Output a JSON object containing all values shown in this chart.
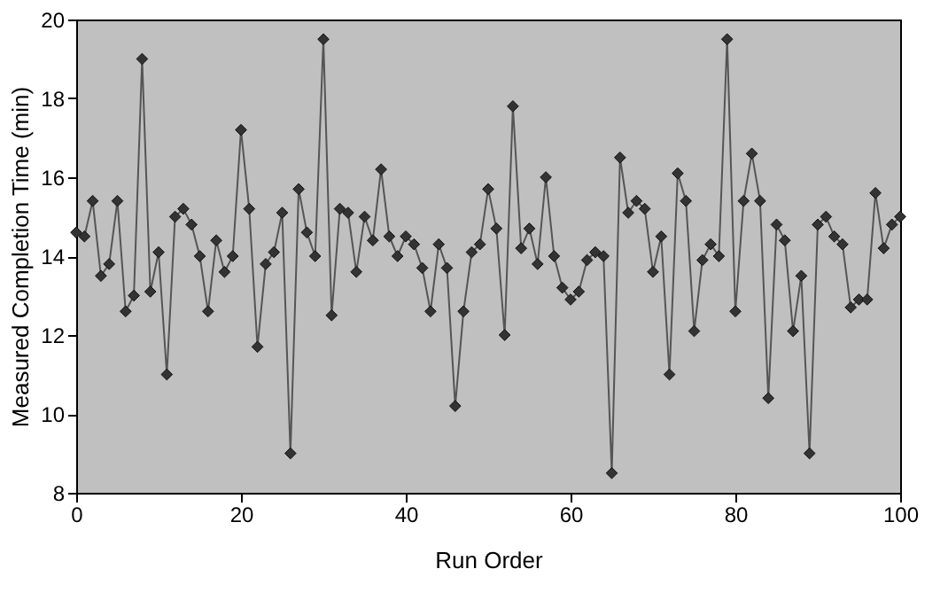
{
  "chart_data": {
    "type": "line",
    "xlabel": "Run Order",
    "ylabel": "Measured Completion Time (min)",
    "x": [
      0,
      1,
      2,
      3,
      4,
      5,
      6,
      7,
      8,
      9,
      10,
      11,
      12,
      13,
      14,
      15,
      16,
      17,
      18,
      19,
      20,
      21,
      22,
      23,
      24,
      25,
      26,
      27,
      28,
      29,
      30,
      31,
      32,
      33,
      34,
      35,
      36,
      37,
      38,
      39,
      40,
      41,
      42,
      43,
      44,
      45,
      46,
      47,
      48,
      49,
      50,
      51,
      52,
      53,
      54,
      55,
      56,
      57,
      58,
      59,
      60,
      61,
      62,
      63,
      64,
      65,
      66,
      67,
      68,
      69,
      70,
      71,
      72,
      73,
      74,
      75,
      76,
      77,
      78,
      79,
      80,
      81,
      82,
      83,
      84,
      85,
      86,
      87,
      88,
      89,
      90,
      91,
      92,
      93,
      94,
      95,
      96,
      97,
      98,
      99,
      100
    ],
    "series": [
      {
        "color": "#333333",
        "values": [
          14.6,
          14.5,
          15.4,
          13.5,
          13.8,
          15.4,
          12.6,
          13.0,
          19.0,
          13.1,
          14.1,
          11.0,
          15.0,
          15.2,
          14.8,
          14.0,
          12.6,
          14.4,
          13.6,
          14.0,
          17.2,
          15.2,
          11.7,
          13.8,
          14.1,
          15.1,
          9.0,
          15.7,
          14.6,
          14.0,
          19.5,
          12.5,
          15.2,
          15.1,
          13.6,
          15.0,
          14.4,
          16.2,
          14.5,
          14.0,
          14.5,
          14.3,
          13.7,
          12.6,
          14.3,
          13.7,
          10.2,
          12.6,
          14.1,
          14.3,
          15.7,
          14.7,
          12.0,
          17.8,
          14.2,
          14.7,
          13.8,
          16.0,
          14.0,
          13.2,
          12.9,
          13.1,
          13.9,
          14.1,
          14.0,
          8.5,
          16.5,
          15.1,
          15.4,
          15.2,
          13.6,
          14.5,
          11.0,
          16.1,
          15.4,
          12.1,
          13.9,
          14.3,
          14.0,
          19.5,
          12.6,
          15.4,
          16.6,
          15.4,
          10.4,
          14.8,
          14.4,
          12.1,
          13.5,
          9.0,
          14.8,
          15.0,
          14.5,
          14.3,
          12.7,
          12.9,
          12.9,
          15.6,
          14.2,
          14.8,
          15.0
        ]
      }
    ],
    "xlim": [
      0,
      100
    ],
    "xticks": [
      0,
      20,
      40,
      60,
      80,
      100
    ],
    "ylim": [
      8,
      20
    ],
    "yticks": [
      8,
      10,
      12,
      14,
      16,
      18,
      20
    ],
    "grid": false,
    "legend": false,
    "marker": "diamond",
    "line_style": "solid"
  }
}
